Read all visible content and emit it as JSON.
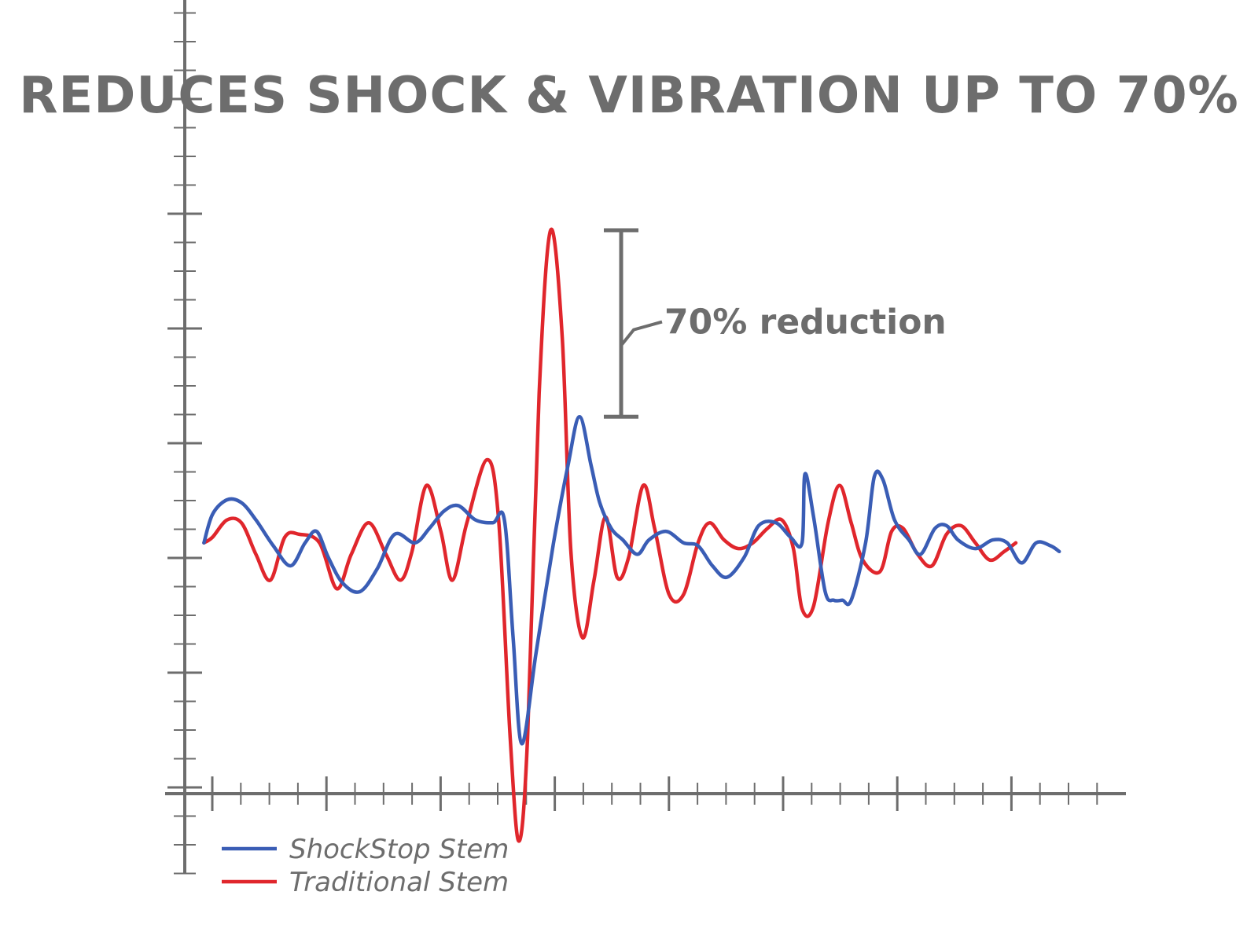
{
  "chart_data": {
    "type": "line",
    "title": "REDUCES SHOCK & VIBRATION UP TO 70%",
    "xlabel": "",
    "ylabel": "",
    "xlim": [
      0,
      32
    ],
    "ylim": [
      -11,
      20
    ],
    "grid": false,
    "legend": "bottom-left",
    "annotation": "70% reduction",
    "colors": {
      "axis": "#6d6d6d",
      "ShockStop Stem": "#3a5db5",
      "Traditional Stem": "#e0262c"
    },
    "series": [
      {
        "name": "ShockStop Stem",
        "points": [
          [
            0.2,
            0.8
          ],
          [
            0.5,
            1.8
          ],
          [
            1.0,
            2.3
          ],
          [
            1.5,
            2.2
          ],
          [
            2.0,
            1.6
          ],
          [
            2.6,
            0.7
          ],
          [
            3.2,
            0.0
          ],
          [
            3.7,
            0.8
          ],
          [
            4.1,
            1.2
          ],
          [
            4.5,
            0.3
          ],
          [
            5.0,
            -0.6
          ],
          [
            5.6,
            -0.9
          ],
          [
            6.2,
            -0.1
          ],
          [
            6.8,
            1.1
          ],
          [
            7.5,
            0.8
          ],
          [
            8.0,
            1.3
          ],
          [
            8.5,
            1.9
          ],
          [
            9.0,
            2.1
          ],
          [
            9.6,
            1.6
          ],
          [
            10.2,
            1.5
          ],
          [
            10.6,
            1.6
          ],
          [
            10.9,
            -2.5
          ],
          [
            11.2,
            -6.2
          ],
          [
            11.7,
            -3.0
          ],
          [
            12.3,
            0.8
          ],
          [
            12.8,
            3.5
          ],
          [
            13.2,
            5.2
          ],
          [
            13.6,
            3.5
          ],
          [
            13.9,
            2.2
          ],
          [
            14.3,
            1.3
          ],
          [
            14.7,
            0.9
          ],
          [
            15.2,
            0.4
          ],
          [
            15.6,
            0.9
          ],
          [
            16.2,
            1.2
          ],
          [
            16.8,
            0.8
          ],
          [
            17.3,
            0.7
          ],
          [
            17.8,
            0.0
          ],
          [
            18.3,
            -0.4
          ],
          [
            18.9,
            0.3
          ],
          [
            19.4,
            1.4
          ],
          [
            20.0,
            1.5
          ],
          [
            20.5,
            1.0
          ],
          [
            20.9,
            0.8
          ],
          [
            21.0,
            3.2
          ],
          [
            21.3,
            1.7
          ],
          [
            21.7,
            -0.9
          ],
          [
            22.0,
            -1.2
          ],
          [
            22.3,
            -1.2
          ],
          [
            22.6,
            -1.2
          ],
          [
            23.1,
            0.8
          ],
          [
            23.4,
            3.1
          ],
          [
            23.7,
            3.0
          ],
          [
            24.1,
            1.6
          ],
          [
            24.6,
            0.9
          ],
          [
            25.0,
            0.4
          ],
          [
            25.5,
            1.3
          ],
          [
            25.9,
            1.4
          ],
          [
            26.3,
            0.9
          ],
          [
            26.9,
            0.6
          ],
          [
            27.5,
            0.9
          ],
          [
            28.0,
            0.8
          ],
          [
            28.5,
            0.1
          ],
          [
            29.0,
            0.8
          ],
          [
            29.5,
            0.7
          ],
          [
            29.8,
            0.5
          ]
        ]
      },
      {
        "name": "Traditional Stem",
        "points": [
          [
            0.2,
            0.8
          ],
          [
            0.5,
            1.0
          ],
          [
            1.0,
            1.6
          ],
          [
            1.5,
            1.5
          ],
          [
            2.0,
            0.4
          ],
          [
            2.5,
            -0.5
          ],
          [
            3.0,
            1.0
          ],
          [
            3.5,
            1.1
          ],
          [
            4.2,
            0.8
          ],
          [
            4.8,
            -0.8
          ],
          [
            5.3,
            0.4
          ],
          [
            5.9,
            1.5
          ],
          [
            6.5,
            0.4
          ],
          [
            7.0,
            -0.5
          ],
          [
            7.4,
            0.5
          ],
          [
            7.9,
            2.8
          ],
          [
            8.4,
            1.2
          ],
          [
            8.8,
            -0.5
          ],
          [
            9.3,
            1.5
          ],
          [
            10.0,
            3.7
          ],
          [
            10.4,
            1.6
          ],
          [
            10.8,
            -6.0
          ],
          [
            11.1,
            -9.6
          ],
          [
            11.4,
            -6.0
          ],
          [
            11.8,
            6.0
          ],
          [
            12.2,
            11.7
          ],
          [
            12.6,
            8.0
          ],
          [
            12.9,
            0.5
          ],
          [
            13.3,
            -2.5
          ],
          [
            13.7,
            -0.5
          ],
          [
            14.1,
            1.7
          ],
          [
            14.5,
            -0.4
          ],
          [
            14.9,
            0.3
          ],
          [
            15.4,
            2.8
          ],
          [
            15.8,
            1.3
          ],
          [
            16.3,
            -1.0
          ],
          [
            16.8,
            -1.0
          ],
          [
            17.3,
            0.8
          ],
          [
            17.7,
            1.5
          ],
          [
            18.2,
            0.9
          ],
          [
            18.7,
            0.6
          ],
          [
            19.2,
            0.8
          ],
          [
            19.7,
            1.3
          ],
          [
            20.2,
            1.6
          ],
          [
            20.6,
            0.6
          ],
          [
            20.9,
            -1.5
          ],
          [
            21.3,
            -1.4
          ],
          [
            21.8,
            1.5
          ],
          [
            22.2,
            2.8
          ],
          [
            22.6,
            1.5
          ],
          [
            23.0,
            0.2
          ],
          [
            23.6,
            -0.2
          ],
          [
            24.0,
            1.2
          ],
          [
            24.4,
            1.3
          ],
          [
            24.9,
            0.4
          ],
          [
            25.4,
            0.0
          ],
          [
            25.9,
            1.1
          ],
          [
            26.4,
            1.4
          ],
          [
            26.9,
            0.8
          ],
          [
            27.4,
            0.2
          ],
          [
            27.9,
            0.5
          ],
          [
            28.3,
            0.8
          ]
        ]
      }
    ]
  }
}
